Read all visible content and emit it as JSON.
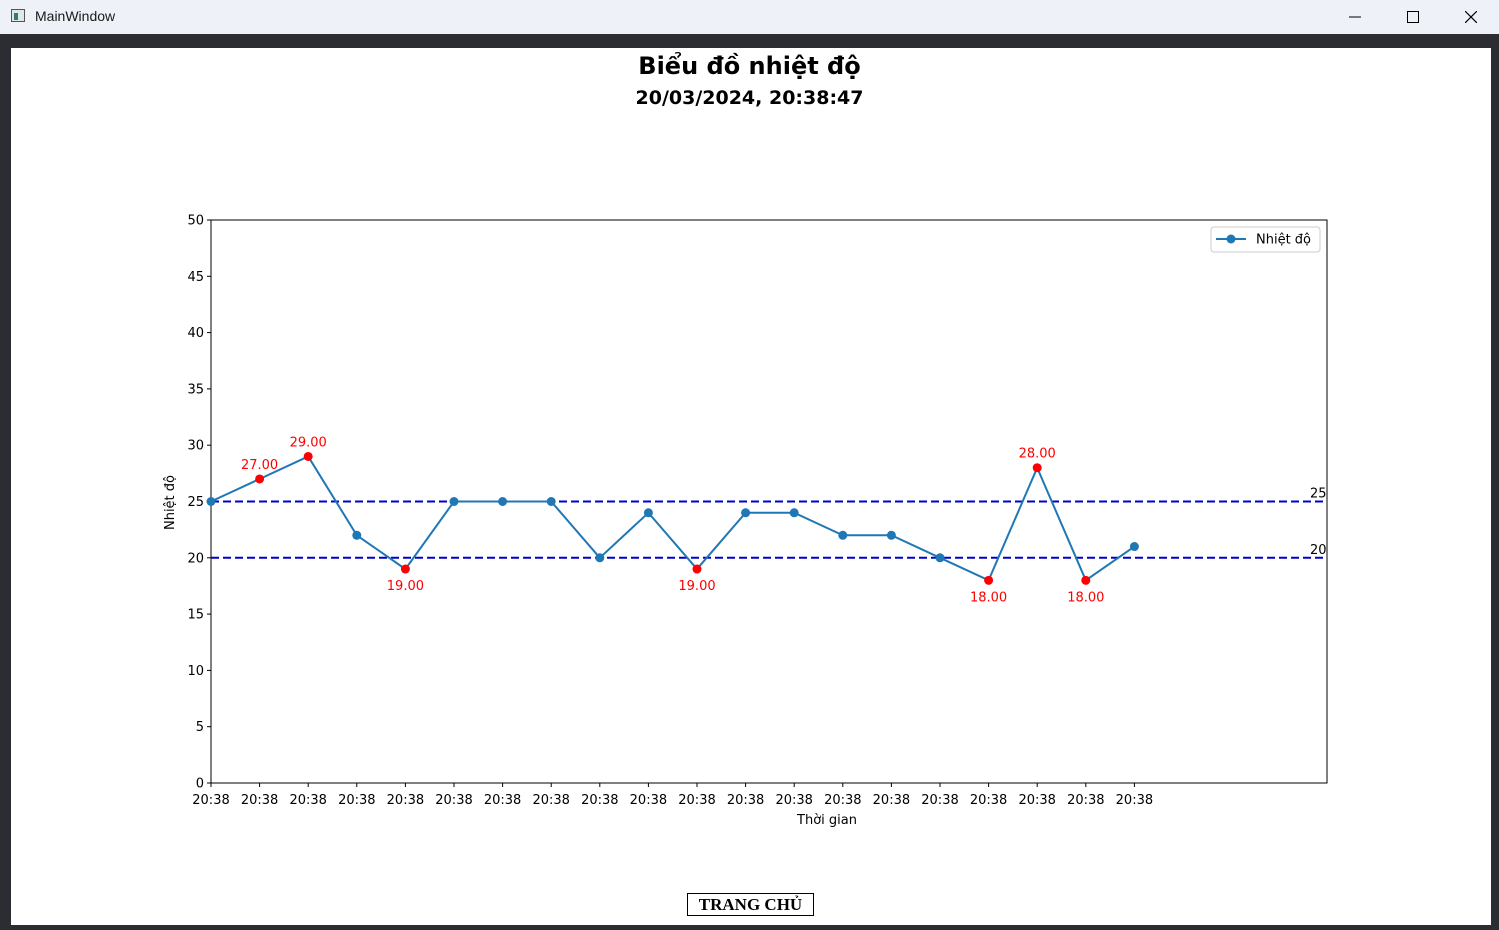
{
  "window": {
    "title": "MainWindow"
  },
  "header": {
    "title": "Biểu đồ nhiệt độ",
    "subtitle": "20/03/2024, 20:38:47"
  },
  "home_button": {
    "label": "TRANG CHỦ"
  },
  "colors": {
    "line": "#1f77b4",
    "highlight": "#ff0000",
    "threshold": "#0000cd"
  },
  "chart_data": {
    "type": "line",
    "xlabel": "Thời gian",
    "ylabel": "Nhiệt độ",
    "ylim": [
      0,
      50
    ],
    "yticks": [
      0,
      5,
      10,
      15,
      20,
      25,
      30,
      35,
      40,
      45,
      50
    ],
    "categories": [
      "20:38",
      "20:38",
      "20:38",
      "20:38",
      "20:38",
      "20:38",
      "20:38",
      "20:38",
      "20:38",
      "20:38",
      "20:38",
      "20:38",
      "20:38",
      "20:38",
      "20:38",
      "20:38",
      "20:38",
      "20:38",
      "20:38",
      "20:38"
    ],
    "series": [
      {
        "name": "Nhiệt độ",
        "values": [
          25,
          27,
          29,
          22,
          19,
          25,
          25,
          25,
          20,
          24,
          19,
          24,
          24,
          22,
          22,
          20,
          18,
          28,
          18,
          21
        ]
      }
    ],
    "point_labels": [
      "",
      "27.00",
      "29.00",
      "",
      "19.00",
      "",
      "",
      "",
      "",
      "",
      "19.00",
      "",
      "",
      "",
      "",
      "",
      "18.00",
      "28.00",
      "18.00",
      ""
    ],
    "thresholds": [
      {
        "value": 25,
        "label": "25"
      },
      {
        "value": 20,
        "label": "20"
      }
    ],
    "legend": "top-right",
    "grid": false
  }
}
